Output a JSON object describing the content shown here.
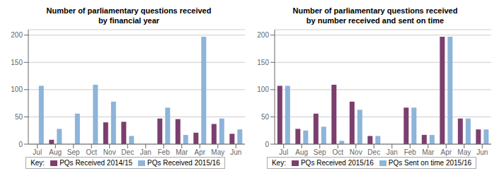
{
  "chart_data": [
    {
      "type": "bar",
      "title": "Number of parliamentary questions received\nby financial year",
      "categories": [
        "Jul",
        "Aug",
        "Sep",
        "Oct",
        "Nov",
        "Dec",
        "Jan",
        "Feb",
        "Mar",
        "Apr",
        "May",
        "Jun"
      ],
      "series": [
        {
          "name": "PQs Received 2014/15",
          "color": "#7b3f6e",
          "values": [
            0,
            8,
            0,
            0,
            40,
            41,
            0,
            47,
            46,
            21,
            37,
            19
          ]
        },
        {
          "name": "PQs Received 2015/16",
          "color": "#8db4d9",
          "values": [
            107,
            28,
            56,
            109,
            78,
            15,
            0,
            67,
            17,
            197,
            47,
            27
          ]
        }
      ],
      "ylim": [
        0,
        210
      ],
      "yticks": [
        0,
        50,
        100,
        150,
        200
      ],
      "grid": true,
      "legend": "bottom",
      "legend_title": "Key:"
    },
    {
      "type": "bar",
      "title": "Number of parliamentary questions received\nby number received and sent on time",
      "categories": [
        "Jul",
        "Aug",
        "Sep",
        "Oct",
        "Nov",
        "Dec",
        "Jan",
        "Feb",
        "Mar",
        "Apr",
        "May",
        "Jun"
      ],
      "series": [
        {
          "name": "PQs Received 2015/16",
          "color": "#7b3f6e",
          "values": [
            107,
            28,
            56,
            109,
            78,
            15,
            0,
            67,
            17,
            197,
            47,
            27
          ]
        },
        {
          "name": "PQs Sent on time 2015/16",
          "color": "#8db4d9",
          "values": [
            107,
            25,
            32,
            6,
            63,
            15,
            0,
            67,
            17,
            197,
            47,
            27
          ]
        }
      ],
      "ylim": [
        0,
        210
      ],
      "yticks": [
        0,
        50,
        100,
        150,
        200
      ],
      "grid": true,
      "legend": "bottom",
      "legend_title": "Key:"
    }
  ]
}
